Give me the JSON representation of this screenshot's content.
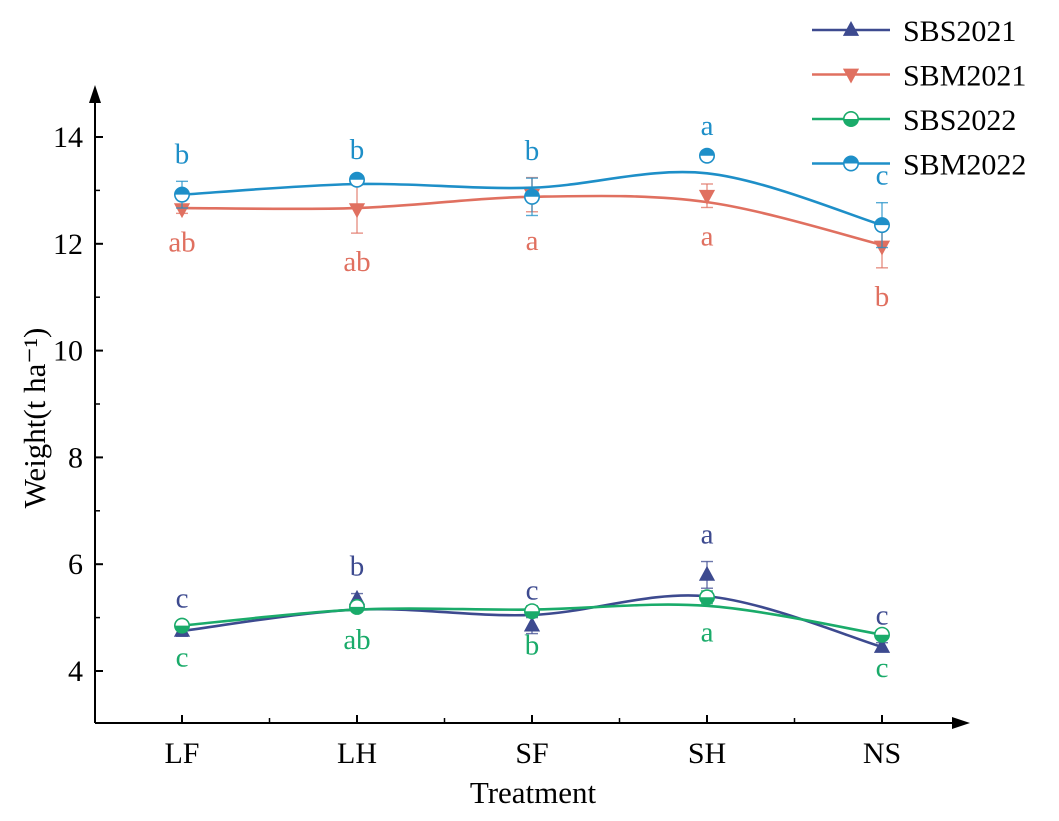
{
  "chart_data": {
    "type": "line",
    "xlabel": "Treatment",
    "ylabel": "Weight(t ha⁻¹)",
    "categories": [
      "LF",
      "LH",
      "SF",
      "SH",
      "NS"
    ],
    "ylim": [
      3,
      15
    ],
    "yticks": [
      4,
      6,
      8,
      10,
      12,
      14
    ],
    "legend_position": "top-right",
    "series": [
      {
        "name": "SBS2021",
        "color": "#3d4a8f",
        "marker": "triangle-up",
        "values": [
          4.75,
          5.35,
          4.85,
          5.8,
          4.45
        ],
        "errors": [
          0.1,
          0.1,
          0.15,
          0.25,
          0.08
        ],
        "fit": [
          4.75,
          5.15,
          5.05,
          5.4,
          4.45
        ],
        "labels": [
          "c",
          "b",
          "c",
          "a",
          "c"
        ],
        "label_pos": [
          "above",
          "above",
          "above",
          "above",
          "above"
        ]
      },
      {
        "name": "SBM2021",
        "color": "#e07060",
        "marker": "triangle-down",
        "values": [
          12.65,
          12.65,
          12.92,
          12.9,
          11.95
        ],
        "errors": [
          0.08,
          0.45,
          0.32,
          0.22,
          0.4
        ],
        "fit": [
          12.67,
          12.67,
          12.88,
          12.78,
          11.98
        ],
        "labels": [
          "ab",
          "ab",
          "a",
          "a",
          "b"
        ],
        "label_pos": [
          "below",
          "below",
          "below",
          "below",
          "below"
        ]
      },
      {
        "name": "SBS2022",
        "color": "#1aab6a",
        "marker": "circle-half-open",
        "values": [
          4.85,
          5.2,
          5.12,
          5.38,
          4.68
        ],
        "errors": [
          0.05,
          0.08,
          0.1,
          0.12,
          0.08
        ],
        "fit": [
          4.85,
          5.15,
          5.15,
          5.22,
          4.68
        ],
        "labels": [
          "c",
          "ab",
          "b",
          "a",
          "c"
        ],
        "label_pos": [
          "below",
          "below",
          "below",
          "below",
          "below"
        ]
      },
      {
        "name": "SBM2022",
        "color": "#1e8fc8",
        "marker": "circle-half-filled",
        "values": [
          12.92,
          13.2,
          12.88,
          13.65,
          12.35
        ],
        "errors": [
          0.25,
          0.05,
          0.35,
          0.05,
          0.42
        ],
        "fit": [
          12.92,
          13.12,
          13.05,
          13.32,
          12.35
        ],
        "labels": [
          "b",
          "b",
          "b",
          "a",
          "c"
        ],
        "label_pos": [
          "above",
          "above",
          "above",
          "above",
          "above"
        ]
      }
    ]
  }
}
